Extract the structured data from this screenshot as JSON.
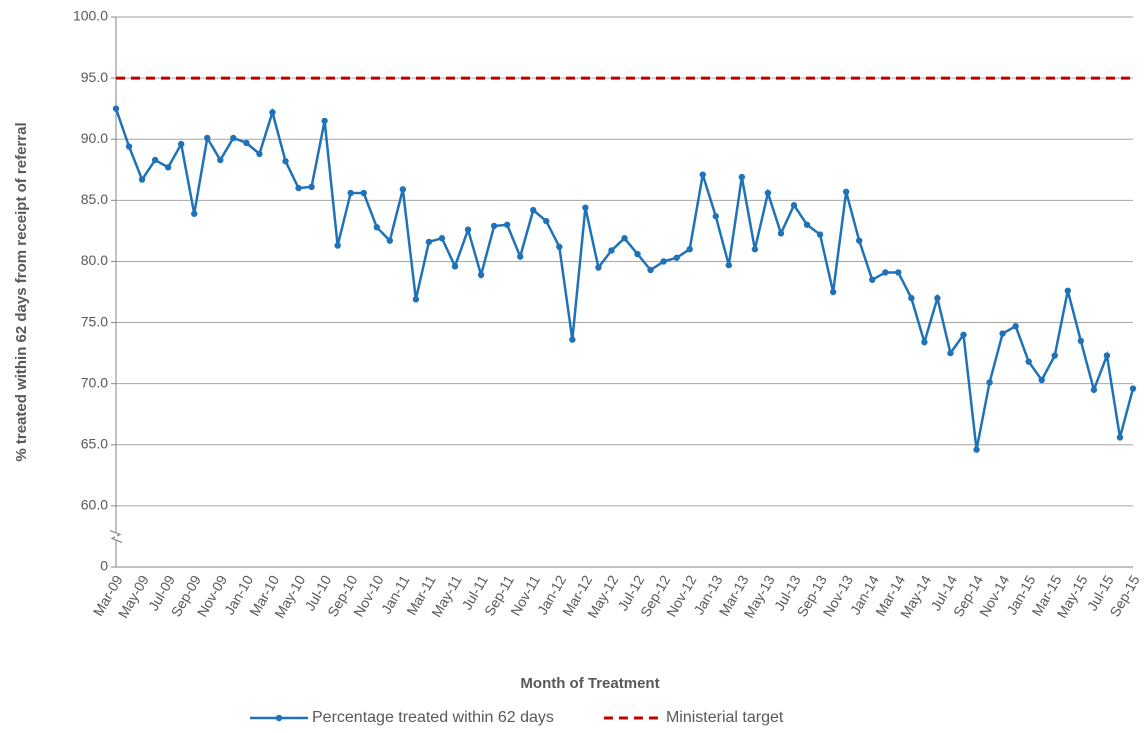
{
  "chart_data": {
    "type": "line",
    "x_label": "Month of Treatment",
    "y_label": "% treated within 62 days from receipt of referral",
    "categories": [
      "Mar-09",
      null,
      "May-09",
      null,
      "Jul-09",
      null,
      "Sep-09",
      null,
      "Nov-09",
      null,
      "Jan-10",
      null,
      "Mar-10",
      null,
      "May-10",
      null,
      "Jul-10",
      null,
      "Sep-10",
      null,
      "Nov-10",
      null,
      "Jan-11",
      null,
      "Mar-11",
      null,
      "May-11",
      null,
      "Jul-11",
      null,
      "Sep-11",
      null,
      "Nov-11",
      null,
      "Jan-12",
      null,
      "Mar-12",
      null,
      "May-12",
      null,
      "Jul-12",
      null,
      "Sep-12",
      null,
      "Nov-12",
      null,
      "Jan-13",
      null,
      "Mar-13",
      null,
      "May-13",
      null,
      "Jul-13",
      null,
      "Sep-13",
      null,
      "Nov-13",
      null,
      "Jan-14",
      null,
      "Mar-14",
      null,
      "May-14",
      null,
      "Jul-14",
      null,
      "Sep-14",
      null,
      "Nov-14",
      null,
      "Jan-15",
      null,
      "Mar-15",
      null,
      "May-15",
      null,
      "Jul-15",
      null,
      "Sep-15"
    ],
    "series": [
      {
        "name": "Percentage treated within 62 days",
        "color": "#1f72b8",
        "style": "solid",
        "markers": true,
        "values": [
          92.5,
          89.4,
          86.7,
          88.3,
          87.7,
          89.6,
          83.9,
          90.1,
          88.3,
          90.1,
          89.7,
          88.8,
          92.2,
          88.2,
          86.0,
          86.1,
          91.5,
          81.3,
          85.6,
          85.6,
          82.8,
          81.7,
          85.9,
          76.9,
          81.6,
          81.9,
          79.6,
          82.6,
          78.9,
          82.9,
          83.0,
          80.4,
          84.2,
          83.3,
          81.2,
          73.6,
          84.4,
          79.5,
          80.9,
          81.9,
          80.6,
          79.3,
          80.0,
          80.3,
          81.0,
          87.1,
          83.7,
          79.7,
          86.9,
          81.0,
          85.6,
          82.3,
          84.6,
          83.0,
          82.2,
          77.5,
          85.7,
          81.7,
          78.5,
          79.1,
          79.1,
          77.0,
          73.4,
          77.0,
          72.5,
          74.0,
          64.6,
          70.1,
          74.1,
          74.7,
          71.8,
          70.3,
          72.3,
          77.6,
          73.5,
          69.5,
          72.3,
          65.6,
          69.6
        ]
      },
      {
        "name": "Ministerial target",
        "color": "#c00000",
        "style": "dashed",
        "markers": false,
        "values": [
          95,
          95,
          95,
          95,
          95,
          95,
          95,
          95,
          95,
          95,
          95,
          95,
          95,
          95,
          95,
          95,
          95,
          95,
          95,
          95,
          95,
          95,
          95,
          95,
          95,
          95,
          95,
          95,
          95,
          95,
          95,
          95,
          95,
          95,
          95,
          95,
          95,
          95,
          95,
          95,
          95,
          95,
          95,
          95,
          95,
          95,
          95,
          95,
          95,
          95,
          95,
          95,
          95,
          95,
          95,
          95,
          95,
          95,
          95,
          95,
          95,
          95,
          95,
          95,
          95,
          95,
          95,
          95,
          95,
          95,
          95,
          95,
          95,
          95,
          95,
          95,
          95,
          95,
          95
        ]
      }
    ],
    "ylim": [
      0,
      100
    ],
    "yticks": [
      0,
      {
        "value": 60,
        "label": "60.0"
      },
      {
        "value": 65,
        "label": "65.0"
      },
      {
        "value": 70,
        "label": "70.0"
      },
      {
        "value": 75,
        "label": "75.0"
      },
      {
        "value": 80,
        "label": "80.0"
      },
      {
        "value": 85,
        "label": "85.0"
      },
      {
        "value": 90,
        "label": "90.0"
      },
      {
        "value": 95,
        "label": "95.0"
      },
      {
        "value": 100,
        "label": "100.0"
      }
    ],
    "axis_break": true,
    "grid": true,
    "legend": "bottom"
  }
}
